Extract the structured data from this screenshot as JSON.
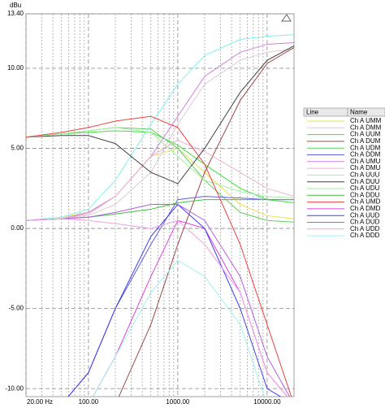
{
  "chart_data": {
    "type": "line",
    "y_label": "dBu",
    "log_x": true,
    "grid": true,
    "legend_columns": [
      "Line",
      "Name"
    ],
    "x": [
      20,
      50,
      100,
      200,
      500,
      1000,
      2000,
      5000,
      10000,
      20000
    ],
    "xlim": [
      20,
      20000
    ],
    "ylim": [
      -10.5,
      13.4
    ],
    "xticks": [
      {
        "value": 20,
        "label": "20.00 Hz"
      },
      {
        "value": 100,
        "label": "100.00"
      },
      {
        "value": 1000,
        "label": "1000.00"
      },
      {
        "value": 10000,
        "label": "10000.00"
      }
    ],
    "yticks": [
      {
        "value": 13.4,
        "label": "13.40"
      },
      {
        "value": 10,
        "label": "10.00"
      },
      {
        "value": 5,
        "label": "5.00"
      },
      {
        "value": 0,
        "label": "0.00"
      },
      {
        "value": -5,
        "label": "-5.00"
      },
      {
        "value": -10,
        "label": "-10.00"
      }
    ],
    "series": [
      {
        "name": "Ch A UMM",
        "color": "#e8e050",
        "values": [
          0.5,
          0.7,
          1.0,
          2.0,
          4.5,
          5.0,
          3.5,
          1.5,
          0.8,
          0.6
        ]
      },
      {
        "name": "Ch A DMM",
        "color": "#e0c8d8",
        "values": [
          0.5,
          0.6,
          0.8,
          1.5,
          3.5,
          6.5,
          9.0,
          10.5,
          11.0,
          11.2
        ]
      },
      {
        "name": "Ch A UUM",
        "color": "#40e040",
        "values": [
          5.7,
          5.9,
          6.0,
          6.1,
          6.0,
          5.2,
          4.0,
          2.5,
          1.8,
          1.6
        ]
      },
      {
        "name": "Ch A DUM",
        "color": "#a04848",
        "values": [
          -11,
          -11,
          -11,
          -11,
          -6,
          -1,
          3.5,
          8,
          10.3,
          11.3
        ]
      },
      {
        "name": "Ch A UDM",
        "color": "#60d060",
        "values": [
          5.7,
          5.9,
          6.1,
          6.3,
          6.2,
          5.0,
          3.0,
          1.0,
          0.5,
          0.4
        ]
      },
      {
        "name": "Ch A DDM",
        "color": "#6060e0",
        "values": [
          -11,
          -11,
          -9,
          -5,
          -1,
          1.8,
          2.0,
          1.9,
          1.8,
          1.8
        ]
      },
      {
        "name": "Ch A UMU",
        "color": "#d080e0",
        "values": [
          0.5,
          0.6,
          1.0,
          2.0,
          4.5,
          7.0,
          9.5,
          11.0,
          11.5,
          11.6
        ]
      },
      {
        "name": "Ch A DMU",
        "color": "#f0b0d0",
        "values": [
          0.5,
          0.6,
          0.9,
          2.0,
          4.5,
          5.5,
          4.8,
          3.5,
          2.5,
          2.0
        ]
      },
      {
        "name": "Ch A UUU",
        "color": "#80f0f0",
        "values": [
          0.5,
          0.7,
          1.2,
          3.0,
          6.5,
          9.0,
          10.8,
          11.8,
          12.0,
          12.1
        ]
      },
      {
        "name": "Ch A DUU",
        "color": "#404040",
        "values": [
          5.7,
          5.8,
          5.8,
          5.3,
          3.5,
          2.8,
          5.0,
          8.5,
          10.5,
          11.4
        ]
      },
      {
        "name": "Ch A UDU",
        "color": "#a0f0a0",
        "values": [
          5.7,
          5.9,
          6.1,
          6.3,
          6.0,
          4.5,
          3.0,
          2.3,
          2.0,
          1.9
        ]
      },
      {
        "name": "Ch A DDU",
        "color": "#40c040",
        "values": [
          0.5,
          0.6,
          0.7,
          0.9,
          1.2,
          1.6,
          1.8,
          1.8,
          1.8,
          1.8
        ]
      },
      {
        "name": "Ch A UMD",
        "color": "#f04040",
        "values": [
          5.7,
          6.0,
          6.3,
          6.7,
          7.0,
          6.3,
          4.0,
          -1,
          -6,
          -11
        ]
      },
      {
        "name": "Ch A DMD",
        "color": "#e040e0",
        "values": [
          -11,
          -11,
          -11,
          -8,
          -3,
          0.5,
          0,
          -4,
          -9,
          -11
        ]
      },
      {
        "name": "Ch A UUD",
        "color": "#4040f0",
        "values": [
          -11,
          -11,
          -9,
          -5,
          -0.5,
          1.5,
          0,
          -5,
          -10,
          -11
        ]
      },
      {
        "name": "Ch A DUD",
        "color": "#b060e0",
        "values": [
          0.5,
          0.6,
          0.7,
          1.0,
          1.5,
          1.5,
          0.5,
          -3,
          -8,
          -11
        ]
      },
      {
        "name": "Ch A UDD",
        "color": "#f0a0e0",
        "values": [
          0.5,
          0.6,
          0.5,
          0.3,
          0,
          0.5,
          -1,
          -4,
          -9,
          -11
        ]
      },
      {
        "name": "Ch A DDD",
        "color": "#a0f0f0",
        "values": [
          -11,
          -11,
          -11,
          -8,
          -4,
          -2,
          -3,
          -6,
          -11,
          -11
        ]
      }
    ]
  }
}
